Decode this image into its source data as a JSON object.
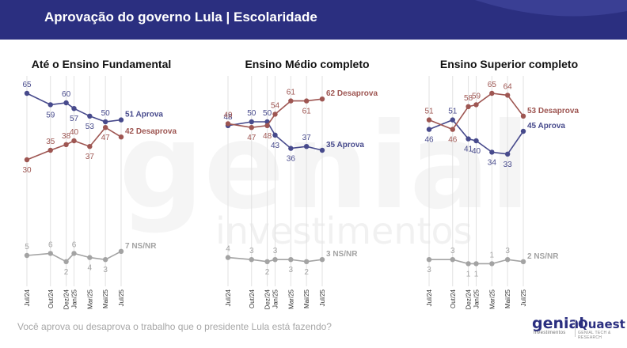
{
  "header": {
    "title": "Aprovação do governo Lula | Escolaridade"
  },
  "question": "Você aprova ou desaprova o trabalho que o presidente Lula está fazendo?",
  "logos": {
    "genial": "genial",
    "genial_sub": "investimentos",
    "quaest": "Quaest",
    "quaest_sub": "GENIAL TECH & RESEARCH"
  },
  "watermark": {
    "big": "genial",
    "small": "investimentos"
  },
  "colors": {
    "aprova": "#474a8c",
    "desaprova": "#9e5652",
    "nsnr": "#a3a3a3",
    "header": "#2b2f80"
  },
  "chart_data": [
    {
      "type": "line",
      "title": "Até o Ensino Fundamental",
      "x": [
        "Jul/24",
        "Out/24",
        "Dez/24",
        "Jan/25",
        "Mar/25",
        "Mai/25",
        "Jul/25"
      ],
      "series": [
        {
          "name": "Aprova",
          "values": [
            65,
            59,
            60,
            57,
            53,
            50,
            51
          ]
        },
        {
          "name": "Desaprova",
          "values": [
            30,
            35,
            38,
            40,
            37,
            47,
            42
          ]
        },
        {
          "name": "NS/NR",
          "values": [
            5,
            6,
            2,
            6,
            4,
            3,
            7
          ]
        }
      ],
      "end_labels": [
        "51 Aprova",
        "42 Desaprova",
        "7 NS/NR"
      ]
    },
    {
      "type": "line",
      "title": "Ensino Médio completo",
      "x": [
        "Jul/24",
        "Out/24",
        "Dez/24",
        "Jan/25",
        "Mar/25",
        "Mai/25",
        "Jul/25"
      ],
      "series": [
        {
          "name": "Aprova",
          "values": [
            48,
            50,
            50,
            43,
            36,
            37,
            35
          ]
        },
        {
          "name": "Desaprova",
          "values": [
            49,
            47,
            48,
            54,
            61,
            61,
            62
          ]
        },
        {
          "name": "NS/NR",
          "values": [
            4,
            3,
            2,
            3,
            3,
            2,
            3
          ]
        }
      ],
      "end_labels": [
        "35 Aprova",
        "62 Desaprova",
        "3 NS/NR"
      ]
    },
    {
      "type": "line",
      "title": "Ensino Superior completo",
      "x": [
        "Jul/24",
        "Out/24",
        "Dez/24",
        "Jan/25",
        "Mar/25",
        "Mai/25",
        "Jul/25"
      ],
      "series": [
        {
          "name": "Aprova",
          "values": [
            46,
            51,
            41,
            40,
            34,
            33,
            45
          ]
        },
        {
          "name": "Desaprova",
          "values": [
            51,
            46,
            58,
            59,
            65,
            64,
            53
          ]
        },
        {
          "name": "NS/NR",
          "values": [
            3,
            3,
            1,
            1,
            1,
            3,
            2
          ]
        }
      ],
      "end_labels": [
        "45 Aprova",
        "53 Desaprova",
        "2 NS/NR"
      ]
    }
  ]
}
